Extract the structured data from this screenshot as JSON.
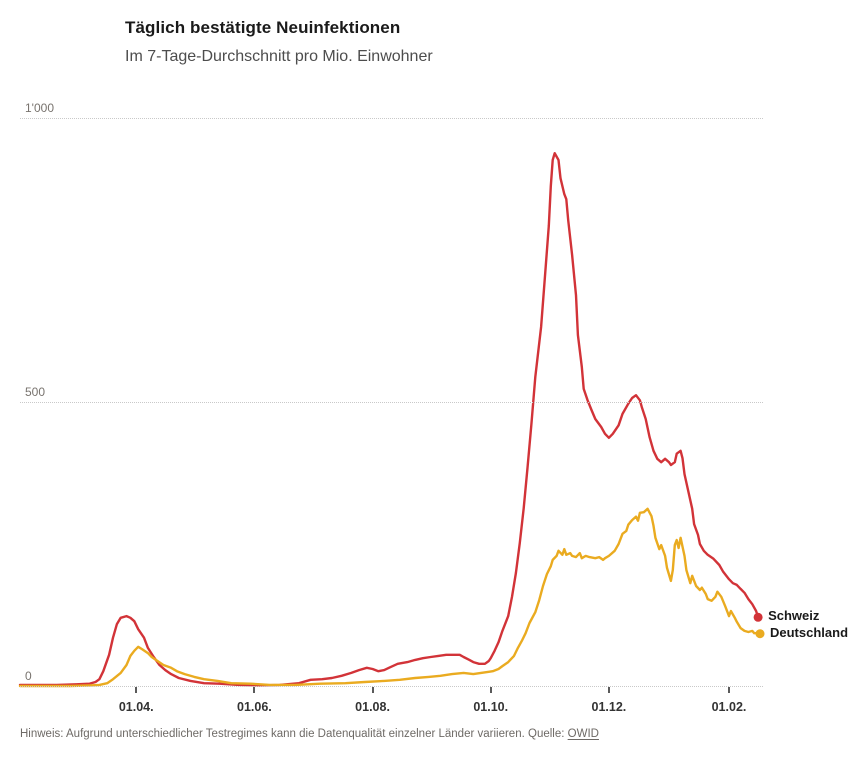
{
  "footnote": {
    "text": "Hinweis: Aufgrund unterschiedlicher Testregimes kann die Datenqualität einzelner Länder variieren. Quelle:",
    "source_label": "OWID"
  },
  "chart_data": {
    "type": "line",
    "title": "Täglich bestätigte Neuinfektionen",
    "subtitle": "Im 7-Tage-Durchschnitt pro Mio. Einwohner",
    "grid": "horizontal-dotted",
    "legend_position": "right-end-of-line",
    "x_axis": {
      "range": [
        "2020-02-01",
        "2021-02-17"
      ],
      "ticks": [
        {
          "label": "01.04.",
          "date": "2020-04-01"
        },
        {
          "label": "01.06.",
          "date": "2020-06-01"
        },
        {
          "label": "01.08.",
          "date": "2020-08-01"
        },
        {
          "label": "01.10.",
          "date": "2020-10-01"
        },
        {
          "label": "01.12.",
          "date": "2020-12-01"
        },
        {
          "label": "01.02.",
          "date": "2021-02-01"
        }
      ]
    },
    "y_axis": {
      "range": [
        0,
        1000
      ],
      "ticks": [
        {
          "label": "0",
          "value": 0
        },
        {
          "label": "500",
          "value": 500
        },
        {
          "label": "1'000",
          "value": 1000
        }
      ]
    },
    "series": [
      {
        "name": "Schweiz",
        "color": "#d23338",
        "points": [
          [
            "2020-02-01",
            2
          ],
          [
            "2020-02-20",
            2
          ],
          [
            "2020-03-01",
            3
          ],
          [
            "2020-03-08",
            4
          ],
          [
            "2020-03-11",
            7
          ],
          [
            "2020-03-13",
            12
          ],
          [
            "2020-03-15",
            26
          ],
          [
            "2020-03-18",
            55
          ],
          [
            "2020-03-20",
            85
          ],
          [
            "2020-03-22",
            109
          ],
          [
            "2020-03-24",
            120
          ],
          [
            "2020-03-27",
            123
          ],
          [
            "2020-03-29",
            120
          ],
          [
            "2020-03-31",
            114
          ],
          [
            "2020-04-02",
            100
          ],
          [
            "2020-04-05",
            85
          ],
          [
            "2020-04-07",
            67
          ],
          [
            "2020-04-10",
            51
          ],
          [
            "2020-04-13",
            37
          ],
          [
            "2020-04-16",
            28
          ],
          [
            "2020-04-19",
            21
          ],
          [
            "2020-04-23",
            14
          ],
          [
            "2020-04-29",
            9
          ],
          [
            "2020-05-06",
            5
          ],
          [
            "2020-05-14",
            4
          ],
          [
            "2020-05-24",
            2
          ],
          [
            "2020-06-03",
            1
          ],
          [
            "2020-06-14",
            2
          ],
          [
            "2020-06-24",
            5
          ],
          [
            "2020-06-30",
            11
          ],
          [
            "2020-07-06",
            12
          ],
          [
            "2020-07-11",
            14
          ],
          [
            "2020-07-16",
            18
          ],
          [
            "2020-07-21",
            23
          ],
          [
            "2020-07-25",
            28
          ],
          [
            "2020-07-29",
            32
          ],
          [
            "2020-08-01",
            30
          ],
          [
            "2020-08-04",
            26
          ],
          [
            "2020-08-07",
            28
          ],
          [
            "2020-08-10",
            33
          ],
          [
            "2020-08-14",
            39
          ],
          [
            "2020-08-19",
            42
          ],
          [
            "2020-08-23",
            46
          ],
          [
            "2020-08-27",
            49
          ],
          [
            "2020-08-31",
            51
          ],
          [
            "2020-09-04",
            53
          ],
          [
            "2020-09-08",
            55
          ],
          [
            "2020-09-15",
            55
          ],
          [
            "2020-09-17",
            51
          ],
          [
            "2020-09-20",
            46
          ],
          [
            "2020-09-22",
            42
          ],
          [
            "2020-09-25",
            39
          ],
          [
            "2020-09-28",
            39
          ],
          [
            "2020-09-30",
            44
          ],
          [
            "2020-10-01",
            49
          ],
          [
            "2020-10-03",
            62
          ],
          [
            "2020-10-05",
            77
          ],
          [
            "2020-10-07",
            97
          ],
          [
            "2020-10-10",
            123
          ],
          [
            "2020-10-12",
            157
          ],
          [
            "2020-10-14",
            199
          ],
          [
            "2020-10-16",
            252
          ],
          [
            "2020-10-18",
            313
          ],
          [
            "2020-10-20",
            384
          ],
          [
            "2020-10-22",
            461
          ],
          [
            "2020-10-24",
            544
          ],
          [
            "2020-10-27",
            632
          ],
          [
            "2020-10-29",
            722
          ],
          [
            "2020-10-31",
            810
          ],
          [
            "2020-11-01",
            880
          ],
          [
            "2020-11-02",
            926
          ],
          [
            "2020-11-03",
            938
          ],
          [
            "2020-11-05",
            926
          ],
          [
            "2020-11-06",
            894
          ],
          [
            "2020-11-08",
            866
          ],
          [
            "2020-11-09",
            857
          ],
          [
            "2020-11-10",
            820
          ],
          [
            "2020-11-12",
            759
          ],
          [
            "2020-11-14",
            688
          ],
          [
            "2020-11-15",
            618
          ],
          [
            "2020-11-17",
            562
          ],
          [
            "2020-11-18",
            523
          ],
          [
            "2020-11-20",
            503
          ],
          [
            "2020-11-22",
            486
          ],
          [
            "2020-11-24",
            470
          ],
          [
            "2020-11-27",
            456
          ],
          [
            "2020-11-29",
            444
          ],
          [
            "2020-12-01",
            437
          ],
          [
            "2020-12-03",
            444
          ],
          [
            "2020-12-06",
            459
          ],
          [
            "2020-12-08",
            479
          ],
          [
            "2020-12-11",
            497
          ],
          [
            "2020-12-13",
            507
          ],
          [
            "2020-12-15",
            512
          ],
          [
            "2020-12-17",
            503
          ],
          [
            "2020-12-18",
            491
          ],
          [
            "2020-12-20",
            470
          ],
          [
            "2020-12-22",
            438
          ],
          [
            "2020-12-24",
            414
          ],
          [
            "2020-12-26",
            400
          ],
          [
            "2020-12-28",
            394
          ],
          [
            "2020-12-30",
            400
          ],
          [
            "2021-01-01",
            394
          ],
          [
            "2021-01-02",
            389
          ],
          [
            "2021-01-04",
            394
          ],
          [
            "2021-01-05",
            409
          ],
          [
            "2021-01-07",
            414
          ],
          [
            "2021-01-08",
            401
          ],
          [
            "2021-01-09",
            373
          ],
          [
            "2021-01-11",
            343
          ],
          [
            "2021-01-13",
            312
          ],
          [
            "2021-01-14",
            285
          ],
          [
            "2021-01-16",
            266
          ],
          [
            "2021-01-17",
            250
          ],
          [
            "2021-01-19",
            238
          ],
          [
            "2021-01-21",
            231
          ],
          [
            "2021-01-24",
            224
          ],
          [
            "2021-01-27",
            213
          ],
          [
            "2021-01-29",
            201
          ],
          [
            "2021-02-01",
            188
          ],
          [
            "2021-02-03",
            181
          ],
          [
            "2021-02-05",
            178
          ],
          [
            "2021-02-07",
            171
          ],
          [
            "2021-02-09",
            164
          ],
          [
            "2021-02-11",
            153
          ],
          [
            "2021-02-13",
            144
          ],
          [
            "2021-02-15",
            132
          ],
          [
            "2021-02-16",
            121
          ]
        ]
      },
      {
        "name": "Deutschland",
        "color": "#eaab20",
        "points": [
          [
            "2020-02-01",
            0
          ],
          [
            "2020-02-27",
            0
          ],
          [
            "2020-03-08",
            1
          ],
          [
            "2020-03-13",
            2
          ],
          [
            "2020-03-17",
            5
          ],
          [
            "2020-03-20",
            12
          ],
          [
            "2020-03-24",
            23
          ],
          [
            "2020-03-27",
            37
          ],
          [
            "2020-03-29",
            53
          ],
          [
            "2020-03-31",
            62
          ],
          [
            "2020-04-02",
            69
          ],
          [
            "2020-04-04",
            65
          ],
          [
            "2020-04-07",
            58
          ],
          [
            "2020-04-09",
            51
          ],
          [
            "2020-04-12",
            44
          ],
          [
            "2020-04-15",
            37
          ],
          [
            "2020-04-19",
            32
          ],
          [
            "2020-04-22",
            26
          ],
          [
            "2020-04-26",
            21
          ],
          [
            "2020-05-01",
            16
          ],
          [
            "2020-05-06",
            12
          ],
          [
            "2020-05-13",
            9
          ],
          [
            "2020-05-20",
            5
          ],
          [
            "2020-05-30",
            4
          ],
          [
            "2020-06-09",
            2
          ],
          [
            "2020-06-22",
            2
          ],
          [
            "2020-07-05",
            4
          ],
          [
            "2020-07-18",
            5
          ],
          [
            "2020-07-28",
            7
          ],
          [
            "2020-08-07",
            9
          ],
          [
            "2020-08-15",
            11
          ],
          [
            "2020-08-23",
            14
          ],
          [
            "2020-08-30",
            16
          ],
          [
            "2020-09-05",
            18
          ],
          [
            "2020-09-11",
            21
          ],
          [
            "2020-09-17",
            23
          ],
          [
            "2020-09-22",
            21
          ],
          [
            "2020-09-26",
            23
          ],
          [
            "2020-09-30",
            25
          ],
          [
            "2020-10-02",
            26
          ],
          [
            "2020-10-05",
            30
          ],
          [
            "2020-10-07",
            35
          ],
          [
            "2020-10-10",
            42
          ],
          [
            "2020-10-13",
            53
          ],
          [
            "2020-10-15",
            67
          ],
          [
            "2020-10-17",
            79
          ],
          [
            "2020-10-19",
            93
          ],
          [
            "2020-10-21",
            111
          ],
          [
            "2020-10-24",
            130
          ],
          [
            "2020-10-26",
            151
          ],
          [
            "2020-10-28",
            176
          ],
          [
            "2020-10-30",
            197
          ],
          [
            "2020-11-01",
            211
          ],
          [
            "2020-11-02",
            222
          ],
          [
            "2020-11-04",
            229
          ],
          [
            "2020-11-05",
            238
          ],
          [
            "2020-11-07",
            231
          ],
          [
            "2020-11-08",
            241
          ],
          [
            "2020-11-09",
            231
          ],
          [
            "2020-11-11",
            234
          ],
          [
            "2020-11-12",
            229
          ],
          [
            "2020-11-14",
            227
          ],
          [
            "2020-11-16",
            234
          ],
          [
            "2020-11-17",
            225
          ],
          [
            "2020-11-19",
            229
          ],
          [
            "2020-11-21",
            227
          ],
          [
            "2020-11-24",
            225
          ],
          [
            "2020-11-26",
            227
          ],
          [
            "2020-11-28",
            222
          ],
          [
            "2020-11-29",
            225
          ],
          [
            "2020-12-01",
            229
          ],
          [
            "2020-12-04",
            238
          ],
          [
            "2020-12-06",
            250
          ],
          [
            "2020-12-08",
            268
          ],
          [
            "2020-12-10",
            273
          ],
          [
            "2020-12-11",
            284
          ],
          [
            "2020-12-13",
            292
          ],
          [
            "2020-12-15",
            298
          ],
          [
            "2020-12-16",
            291
          ],
          [
            "2020-12-17",
            305
          ],
          [
            "2020-12-19",
            306
          ],
          [
            "2020-12-21",
            312
          ],
          [
            "2020-12-23",
            299
          ],
          [
            "2020-12-24",
            282
          ],
          [
            "2020-12-25",
            261
          ],
          [
            "2020-12-27",
            241
          ],
          [
            "2020-12-28",
            248
          ],
          [
            "2020-12-30",
            229
          ],
          [
            "2020-12-31",
            208
          ],
          [
            "2021-01-02",
            185
          ],
          [
            "2021-01-03",
            204
          ],
          [
            "2021-01-04",
            248
          ],
          [
            "2021-01-05",
            257
          ],
          [
            "2021-01-06",
            243
          ],
          [
            "2021-01-07",
            261
          ],
          [
            "2021-01-09",
            229
          ],
          [
            "2021-01-10",
            204
          ],
          [
            "2021-01-12",
            181
          ],
          [
            "2021-01-13",
            194
          ],
          [
            "2021-01-15",
            176
          ],
          [
            "2021-01-17",
            169
          ],
          [
            "2021-01-18",
            173
          ],
          [
            "2021-01-20",
            162
          ],
          [
            "2021-01-21",
            153
          ],
          [
            "2021-01-23",
            150
          ],
          [
            "2021-01-25",
            157
          ],
          [
            "2021-01-26",
            166
          ],
          [
            "2021-01-28",
            157
          ],
          [
            "2021-01-30",
            141
          ],
          [
            "2021-02-01",
            123
          ],
          [
            "2021-02-02",
            132
          ],
          [
            "2021-02-04",
            120
          ],
          [
            "2021-02-05",
            113
          ],
          [
            "2021-02-07",
            102
          ],
          [
            "2021-02-09",
            97
          ],
          [
            "2021-02-11",
            95
          ],
          [
            "2021-02-13",
            97
          ],
          [
            "2021-02-14",
            93
          ],
          [
            "2021-02-16",
            93
          ],
          [
            "2021-02-17",
            92
          ]
        ]
      }
    ]
  }
}
